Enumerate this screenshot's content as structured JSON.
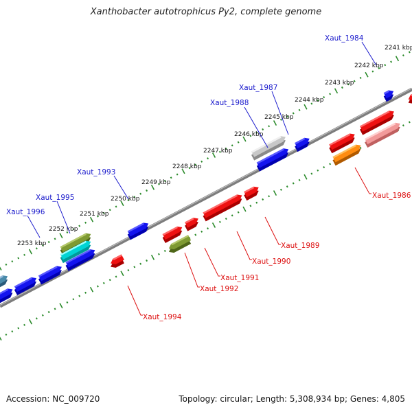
{
  "title": "Xanthobacter autotrophicus Py2, complete genome",
  "footer": {
    "accession": "Accession: NC_009720",
    "summary": "Topology: circular; Length: 5,308,934 bp; Genes: 4,805"
  },
  "colors": {
    "backbone": "#888888",
    "tick": "#2a8a2a",
    "forward_label": "#1a1acc",
    "reverse_label": "#dd1111"
  },
  "scale_labels": [
    "2241 kbp",
    "2242 kbp",
    "2243 kbp",
    "2244 kbp",
    "2245 kbp",
    "2246 kbp",
    "2247 kbp",
    "2248 kbp",
    "2249 kbp",
    "2250 kbp",
    "2251 kbp",
    "2252 kbp",
    "2253 kbp"
  ],
  "gene_labels": {
    "forward": [
      "Xaut_1984",
      "Xaut_1987",
      "Xaut_1988",
      "Xaut_1993",
      "Xaut_1995",
      "Xaut_1996"
    ],
    "reverse": [
      "Xaut_1986",
      "Xaut_1989",
      "Xaut_1990",
      "Xaut_1991",
      "Xaut_1992",
      "Xaut_1994"
    ]
  }
}
